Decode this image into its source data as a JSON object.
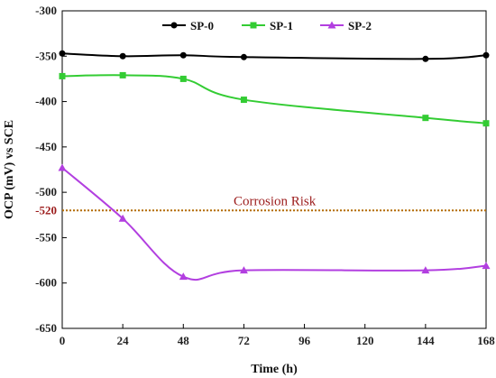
{
  "chart_data": {
    "type": "line",
    "xlabel": "Time (h)",
    "ylabel": "OCP (mV) vs SCE",
    "x": [
      0,
      24,
      48,
      72,
      144,
      168
    ],
    "xticks": [
      0,
      24,
      48,
      72,
      96,
      120,
      144,
      168
    ],
    "xlim": [
      0,
      168
    ],
    "ylim": [
      -650,
      -300
    ],
    "yticks": [
      -300,
      -350,
      -400,
      -450,
      -500,
      -550,
      -600,
      -650
    ],
    "grid": false,
    "legend": "top",
    "series": [
      {
        "name": "SP-0",
        "color": "#000000",
        "marker": "circle",
        "values": [
          -347,
          -350,
          -349,
          -351,
          -353,
          -349
        ]
      },
      {
        "name": "SP-1",
        "color": "#33cc33",
        "marker": "square",
        "values": [
          -372,
          -371,
          -375,
          -398,
          -418,
          -424
        ]
      },
      {
        "name": "SP-2",
        "color": "#b23fe0",
        "marker": "triangle",
        "values": [
          -473,
          -529,
          -593,
          -586,
          -586,
          -581
        ]
      }
    ],
    "annotations": [
      {
        "label": "Corrosion Risk",
        "y": -520,
        "y_label": "-520",
        "color": "#b36b00"
      }
    ]
  }
}
